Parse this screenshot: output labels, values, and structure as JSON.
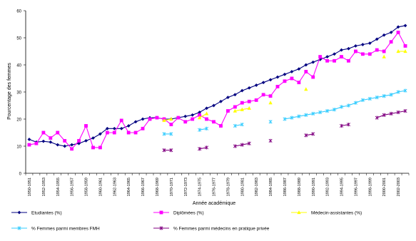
{
  "chart_data": {
    "type": "line",
    "title": "",
    "ylabel": "Pourcentage des femmes",
    "xlabel": "Année académique",
    "ylim": [
      0,
      60
    ],
    "yticks": [
      0,
      10,
      20,
      30,
      40,
      50,
      60
    ],
    "grid": false,
    "legend_position": "bottom",
    "categories": [
      "1950-1951",
      "1951-1952",
      "1952-1953",
      "1953-1954",
      "1954-1955",
      "1955-1956",
      "1956-1957",
      "1957-1958",
      "1958-1959",
      "1959-1960",
      "1960-1961",
      "1961-1962",
      "1962-1963",
      "1963-1964",
      "1964-1965",
      "1965-1966",
      "1966-1967",
      "1967-1968",
      "1968-1969",
      "1969-1970",
      "1970-1971",
      "1971-1972",
      "1972-1973",
      "1973-1974",
      "1974-1975",
      "1975-1976",
      "1976-1977",
      "1977-1978",
      "1978-1979",
      "1979-1980",
      "1980-1981",
      "1981-1982",
      "1982-1983",
      "1983-1984",
      "1984-1985",
      "1985-1986",
      "1986-1987",
      "1987-1988",
      "1988-1989",
      "1989-1990",
      "1990-1991",
      "1991-1992",
      "1992-1993",
      "1993-1994",
      "1994-1995",
      "1995-1996",
      "1996-1997",
      "1997-1998",
      "1998-1999",
      "1999-2000",
      "2000-2001",
      "2001-2002",
      "2002-2003",
      "2003-2004"
    ],
    "tick_labels": [
      "1950-1951",
      "1952-1953",
      "1954-1955",
      "1956-1957",
      "1958-1959",
      "1960-1961",
      "1962-1963",
      "1964-1965",
      "1966-1967",
      "1968-1969",
      "1970-1971",
      "1972-1973",
      "1974-1975",
      "1976-1977",
      "1978-1979",
      "1980-1981",
      "1982-1983",
      "1984-1985",
      "1986-1987",
      "1988-1989",
      "1990-1991",
      "1992-1993",
      "1994-1995",
      "1996-1997",
      "1998-1999",
      "2000-2001",
      "2002-2003"
    ],
    "series": [
      {
        "name": "Etudiantes (%)",
        "color": "#000080",
        "marker": "diamond",
        "values": [
          12.5,
          11.5,
          11.8,
          11.5,
          10.5,
          10,
          10.5,
          11,
          12,
          13,
          14.5,
          16.5,
          16.5,
          16.5,
          17.5,
          19,
          20,
          20.5,
          20.5,
          20,
          20,
          20.5,
          21,
          21.5,
          22.5,
          24,
          25,
          26.5,
          28,
          29,
          30.5,
          31.5,
          32.5,
          33.5,
          34.5,
          35.5,
          36.5,
          37.5,
          38.5,
          40,
          41,
          42,
          43,
          44,
          45.5,
          46,
          47,
          47.5,
          48,
          49.5,
          51,
          52,
          54,
          54.5
        ]
      },
      {
        "name": "Diplômées (%)",
        "color": "#ff00ff",
        "marker": "square",
        "values": [
          10.5,
          11,
          15,
          13,
          15,
          12,
          9,
          12,
          17.5,
          9.5,
          9.5,
          15,
          15,
          19.5,
          15,
          15,
          16.5,
          20,
          20.5,
          20,
          18,
          20.5,
          19,
          20,
          21.5,
          20,
          19,
          17.5,
          23,
          24.5,
          26,
          26.5,
          27,
          29,
          28.5,
          32,
          34,
          35,
          33.5,
          37.5,
          35.5,
          43,
          41.5,
          41.5,
          43,
          41.5,
          45,
          44,
          44,
          45.5,
          45,
          48.5,
          52,
          47
        ]
      },
      {
        "name": "Médecin-assistantes (%)",
        "color": "#ffff00",
        "marker": "triangle",
        "values": [
          null,
          null,
          null,
          null,
          null,
          null,
          null,
          null,
          null,
          null,
          null,
          null,
          null,
          null,
          null,
          null,
          null,
          null,
          null,
          19.5,
          20,
          null,
          null,
          null,
          20.5,
          22,
          null,
          null,
          null,
          23,
          23.5,
          24,
          null,
          null,
          26,
          null,
          null,
          null,
          null,
          31,
          null,
          null,
          null,
          null,
          null,
          null,
          null,
          null,
          null,
          null,
          43,
          null,
          45,
          45
        ]
      },
      {
        "name": "% Femmes parmi membres FMH",
        "color": "#33ccff",
        "marker": "star",
        "values": [
          null,
          null,
          null,
          null,
          null,
          null,
          null,
          null,
          null,
          null,
          null,
          null,
          null,
          null,
          null,
          null,
          null,
          null,
          null,
          14.5,
          14.5,
          null,
          null,
          null,
          16,
          16.5,
          null,
          null,
          null,
          17.5,
          18,
          null,
          null,
          null,
          19,
          null,
          20,
          20.5,
          21,
          21.5,
          22,
          22.5,
          23,
          23.5,
          24.5,
          25,
          26,
          27,
          27.5,
          28,
          28.5,
          29,
          30,
          30.5
        ]
      },
      {
        "name": "% Femmes parmi médecins en pratique privée",
        "color": "#800080",
        "marker": "star",
        "values": [
          null,
          null,
          null,
          null,
          null,
          null,
          null,
          null,
          null,
          null,
          null,
          null,
          null,
          null,
          null,
          null,
          null,
          null,
          null,
          8.5,
          8.5,
          null,
          null,
          null,
          9,
          9.5,
          null,
          null,
          null,
          10,
          10.5,
          11,
          null,
          null,
          12,
          null,
          null,
          null,
          null,
          14,
          14.5,
          null,
          null,
          null,
          17.5,
          18,
          null,
          null,
          null,
          20.5,
          21.5,
          22,
          22.5,
          23
        ]
      }
    ]
  }
}
